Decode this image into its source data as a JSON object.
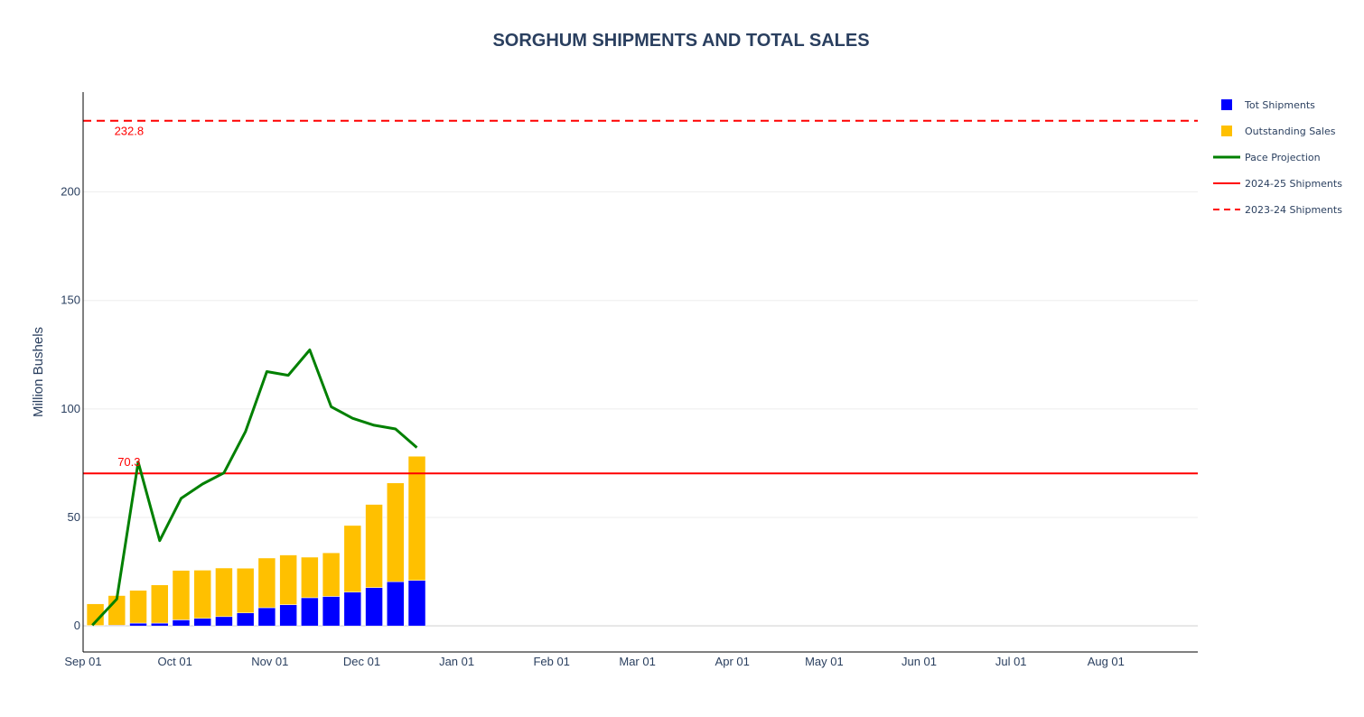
{
  "chart_data": {
    "type": "bar",
    "title": "SORGHUM SHIPMENTS AND TOTAL SALES",
    "ylabel": "Million Bushels",
    "xlabel": "",
    "barmode": "stack",
    "x_range": [
      "2024-09-01",
      "2025-08-31"
    ],
    "ylim": [
      -12,
      246
    ],
    "y_ticks": [
      0,
      50,
      100,
      150,
      200
    ],
    "x_ticks": [
      {
        "date": "2024-09-01",
        "label": "Sep 01"
      },
      {
        "date": "2024-10-01",
        "label": "Oct 01"
      },
      {
        "date": "2024-11-01",
        "label": "Nov 01"
      },
      {
        "date": "2024-12-01",
        "label": "Dec 01"
      },
      {
        "date": "2025-01-01",
        "label": "Jan 01"
      },
      {
        "date": "2025-02-01",
        "label": "Feb 01"
      },
      {
        "date": "2025-03-01",
        "label": "Mar 01"
      },
      {
        "date": "2025-04-01",
        "label": "Apr 01"
      },
      {
        "date": "2025-05-01",
        "label": "May 01"
      },
      {
        "date": "2025-06-01",
        "label": "Jun 01"
      },
      {
        "date": "2025-07-01",
        "label": "Jul 01"
      },
      {
        "date": "2025-08-01",
        "label": "Aug 01"
      }
    ],
    "dates": [
      "2024-09-05",
      "2024-09-12",
      "2024-09-19",
      "2024-09-26",
      "2024-10-03",
      "2024-10-10",
      "2024-10-17",
      "2024-10-24",
      "2024-10-31",
      "2024-11-07",
      "2024-11-14",
      "2024-11-21",
      "2024-11-28",
      "2024-12-05",
      "2024-12-12",
      "2024-12-19"
    ],
    "series": [
      {
        "name": "Tot Shipments",
        "type": "bar",
        "color": "#0000ff",
        "values": [
          0.2,
          0.3,
          1.3,
          1.3,
          2.8,
          3.5,
          4.3,
          6.0,
          8.4,
          9.8,
          13.0,
          13.6,
          15.6,
          17.7,
          20.4,
          21.0
        ]
      },
      {
        "name": "Outstanding Sales",
        "type": "bar",
        "color": "#ffc000",
        "values": [
          10.0,
          13.7,
          15.1,
          17.6,
          22.8,
          22.2,
          22.4,
          20.6,
          22.9,
          22.9,
          18.7,
          20.1,
          30.7,
          38.3,
          45.5,
          57.2
        ]
      },
      {
        "name": "Pace Projection",
        "type": "line",
        "color": "#008000",
        "x": [
          "2024-09-04",
          "2024-09-12",
          "2024-09-19",
          "2024-09-26",
          "2024-10-03",
          "2024-10-10",
          "2024-10-17",
          "2024-10-24",
          "2024-10-31",
          "2024-11-07",
          "2024-11-14",
          "2024-11-21",
          "2024-11-28",
          "2024-12-05",
          "2024-12-12",
          "2024-12-19"
        ],
        "values": [
          0.3,
          12.4,
          75.5,
          39.3,
          58.8,
          65.4,
          70.5,
          89.5,
          117.2,
          115.5,
          127.2,
          101.0,
          95.7,
          92.5,
          90.8,
          82.2
        ]
      },
      {
        "name": "2024-25 Shipments",
        "type": "hline",
        "color": "#ff0000",
        "dash": "solid",
        "value": 70.3
      },
      {
        "name": "2023-24 Shipments",
        "type": "hline",
        "color": "#ff0000",
        "dash": "dash",
        "value": 232.8
      }
    ],
    "annotations": [
      {
        "text": "232.8",
        "x": "2024-09-16",
        "y": 232.8,
        "color": "#ff0000"
      },
      {
        "text": "70.3",
        "x": "2024-09-16",
        "y": 70.3,
        "color": "#ff0000"
      }
    ],
    "legend_position": "top-right",
    "grid": true
  }
}
